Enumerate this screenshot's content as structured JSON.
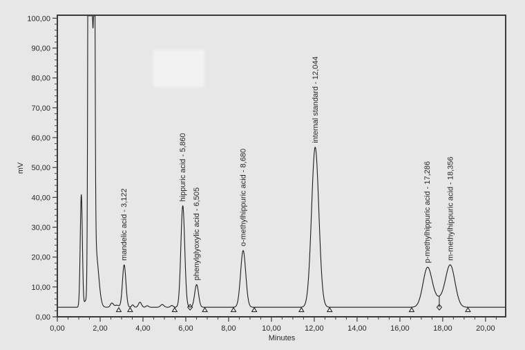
{
  "chart_data": {
    "type": "line",
    "title": "",
    "xlabel": "Minutes",
    "ylabel": "mV",
    "decimal_separator": ",",
    "grid": false,
    "legend": "none",
    "x_axis": {
      "min": 0,
      "max": 20.94,
      "major_tick_values": [
        0,
        2,
        4,
        6,
        8,
        10,
        12,
        14,
        16,
        18,
        20
      ],
      "major_tick_labels": [
        "0,00",
        "2,00",
        "4,00",
        "6,00",
        "8,00",
        "10,00",
        "12,00",
        "14,00",
        "16,00",
        "18,00",
        "20,00"
      ],
      "minor_tick_step": 0.5
    },
    "y_axis": {
      "min": 0,
      "max": 100,
      "major_tick_values": [
        0,
        10,
        20,
        30,
        40,
        50,
        60,
        70,
        80,
        90,
        100
      ],
      "major_tick_labels": [
        "0,00",
        "10,00",
        "20,00",
        "30,00",
        "40,00",
        "50,00",
        "60,00",
        "70,00",
        "80,00",
        "90,00",
        "100,00"
      ],
      "minor_tick_step": 2
    },
    "baseline_mV": 3.2,
    "peaks": [
      {
        "label": "mandelic acid - 3,122",
        "retention_time_min": 3.122,
        "apex_mV": 17.4,
        "sigma_min": 0.08
      },
      {
        "label": "hippuric acid - 5,860",
        "retention_time_min": 5.86,
        "apex_mV": 37.2,
        "sigma_min": 0.09
      },
      {
        "label": "phenylglyoxylic acid - 6,505",
        "retention_time_min": 6.505,
        "apex_mV": 10.8,
        "sigma_min": 0.09
      },
      {
        "label": "o-methylhippuric acid - 8,680",
        "retention_time_min": 8.68,
        "apex_mV": 22.2,
        "sigma_min": 0.12
      },
      {
        "label": "internal standard - 12,044",
        "retention_time_min": 12.044,
        "apex_mV": 56.8,
        "sigma_min": 0.17
      },
      {
        "label": "p-methylhippuric acid - 17,286",
        "retention_time_min": 17.286,
        "apex_mV": 16.6,
        "sigma_min": 0.21
      },
      {
        "label": "m-methylhippuric acid - 18,356",
        "retention_time_min": 18.356,
        "apex_mV": 17.4,
        "sigma_min": 0.22
      }
    ],
    "unlabeled_features": [
      {
        "center_min": 1.12,
        "height_mV": 37.7,
        "sigma_min": 0.05,
        "note": "early unlabeled peak ~41 mV"
      },
      {
        "center_min": 1.31,
        "height_mV": 2.0,
        "sigma_min": 0.05,
        "note": "shoulder between early peaks"
      },
      {
        "center_min": 1.59,
        "height_mV": 4000,
        "sigma_min": 0.0625,
        "note": "solvent front, off-scale (clipped at plot top)"
      },
      {
        "center_min": 1.8,
        "height_mV": 18,
        "sigma_min": 0.13,
        "note": "solvent front tail"
      },
      {
        "center_min": 2.55,
        "height_mV": 1.4,
        "sigma_min": 0.07,
        "note": "baseline ripple"
      },
      {
        "center_min": 2.78,
        "height_mV": 0.7,
        "sigma_min": 0.09,
        "note": "baseline ripple"
      },
      {
        "center_min": 3.52,
        "height_mV": 0.8,
        "sigma_min": 0.05,
        "note": "baseline ripple"
      },
      {
        "center_min": 3.86,
        "height_mV": 1.7,
        "sigma_min": 0.07,
        "note": "small unlabeled bump"
      },
      {
        "center_min": 4.2,
        "height_mV": 0.5,
        "sigma_min": 0.06,
        "note": "baseline ripple"
      },
      {
        "center_min": 4.9,
        "height_mV": 0.9,
        "sigma_min": 0.08,
        "note": "baseline ripple"
      },
      {
        "center_min": 5.35,
        "height_mV": 0.6,
        "sigma_min": 0.06,
        "note": "baseline ripple"
      },
      {
        "center_min": 17.8,
        "height_mV": 2.5,
        "sigma_min": 0.3,
        "note": "unresolved hump under p-/m- pair"
      }
    ],
    "clip_notch": {
      "center_min": 1.665,
      "depth_mV": 4.5,
      "sigma_min": 0.011,
      "note": "notch in clipped solvent peak top"
    },
    "integration_markers": [
      {
        "x_min": 2.87,
        "shape": "triangle"
      },
      {
        "x_min": 3.4,
        "shape": "triangle"
      },
      {
        "x_min": 5.48,
        "shape": "triangle"
      },
      {
        "x_min": 6.2,
        "shape": "diamond"
      },
      {
        "x_min": 6.89,
        "shape": "triangle"
      },
      {
        "x_min": 8.23,
        "shape": "triangle"
      },
      {
        "x_min": 9.2,
        "shape": "triangle"
      },
      {
        "x_min": 11.4,
        "shape": "triangle"
      },
      {
        "x_min": 12.72,
        "shape": "triangle"
      },
      {
        "x_min": 16.55,
        "shape": "triangle"
      },
      {
        "x_min": 17.84,
        "shape": "diamond"
      },
      {
        "x_min": 19.18,
        "shape": "triangle"
      }
    ]
  },
  "colors": {
    "background": "#e7e7e7",
    "trace": "#1a1a1a",
    "frame": "#3a3a3a",
    "text": "#26282c",
    "highlight_patch": "#f2f2f2"
  }
}
